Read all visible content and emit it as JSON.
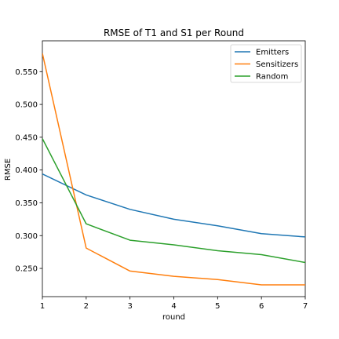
{
  "chart_data": {
    "type": "line",
    "title": "RMSE of T1 and S1 per Round",
    "xlabel": "round",
    "ylabel": "RMSE",
    "x": [
      1,
      2,
      3,
      4,
      5,
      6,
      7
    ],
    "xlim": [
      1,
      7
    ],
    "ylim": [
      0.207,
      0.597
    ],
    "xticks": [
      1,
      2,
      3,
      4,
      5,
      6,
      7
    ],
    "yticks": [
      0.25,
      0.3,
      0.35,
      0.4,
      0.45,
      0.5,
      0.55
    ],
    "ytick_labels": [
      "0.250",
      "0.300",
      "0.350",
      "0.400",
      "0.450",
      "0.500",
      "0.550"
    ],
    "legend_position": "top-right",
    "grid": false,
    "series": [
      {
        "name": "Emitters",
        "color": "#1f77b4",
        "values": [
          0.394,
          0.362,
          0.34,
          0.325,
          0.315,
          0.303,
          0.298
        ]
      },
      {
        "name": "Sensitizers",
        "color": "#ff7f0e",
        "values": [
          0.578,
          0.281,
          0.246,
          0.238,
          0.233,
          0.225,
          0.225
        ]
      },
      {
        "name": "Random",
        "color": "#2ca02c",
        "values": [
          0.448,
          0.318,
          0.293,
          0.286,
          0.277,
          0.271,
          0.259
        ]
      }
    ]
  }
}
